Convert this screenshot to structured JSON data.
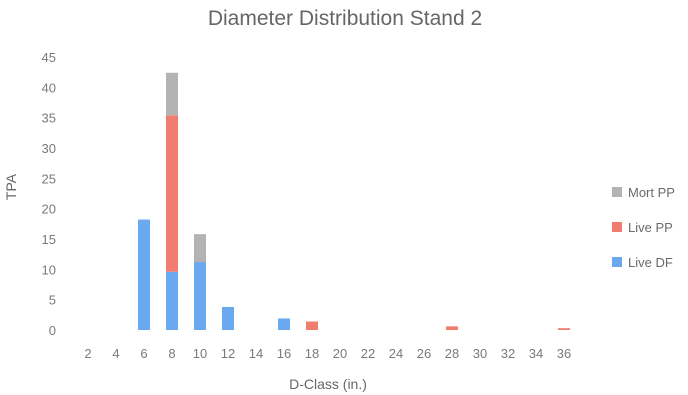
{
  "chart_data": {
    "type": "bar",
    "stacked": true,
    "title": "Diameter Distribution Stand 2",
    "xlabel": "D-Class (in.)",
    "ylabel": "TPA",
    "ylim": [
      0,
      45
    ],
    "yticks": [
      0,
      5,
      10,
      15,
      20,
      25,
      30,
      35,
      40,
      45
    ],
    "grid": false,
    "legend_position": "right",
    "categories": [
      "2",
      "4",
      "6",
      "8",
      "10",
      "12",
      "14",
      "16",
      "18",
      "20",
      "22",
      "24",
      "26",
      "28",
      "30",
      "32",
      "34",
      "36"
    ],
    "series": [
      {
        "name": "Live DF",
        "color": "#6aa9ef",
        "values": [
          0,
          0,
          18.2,
          9.6,
          11.2,
          3.8,
          0,
          1.9,
          0,
          0,
          0,
          0,
          0,
          0,
          0,
          0,
          0,
          0
        ]
      },
      {
        "name": "Live PP",
        "color": "#f07d70",
        "values": [
          0,
          0,
          0,
          25.8,
          0,
          0,
          0,
          0,
          1.4,
          0,
          0,
          0,
          0,
          0.6,
          0,
          0,
          0,
          0.3
        ]
      },
      {
        "name": "Mort PP",
        "color": "#b3b3b3",
        "values": [
          0,
          0,
          0,
          7,
          4.6,
          0,
          0,
          0,
          0,
          0,
          0,
          0,
          0,
          0,
          0,
          0,
          0,
          0
        ]
      }
    ],
    "legend_order": [
      "Mort PP",
      "Live PP",
      "Live DF"
    ]
  }
}
